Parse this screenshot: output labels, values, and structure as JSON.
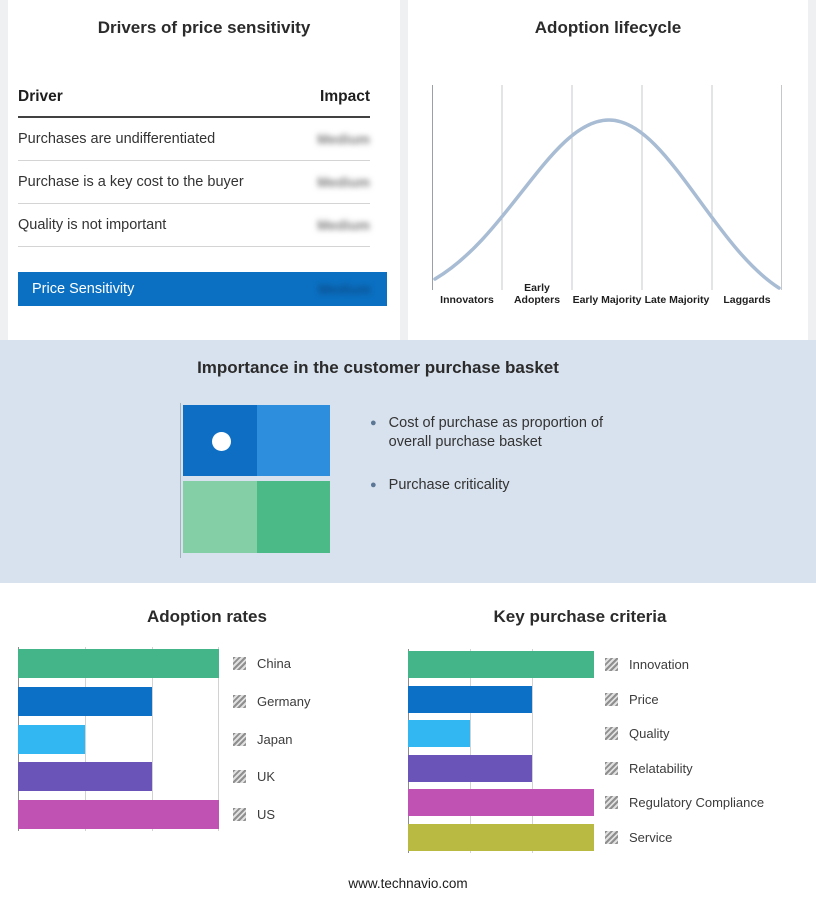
{
  "drivers_panel": {
    "title": "Drivers of price sensitivity",
    "columns": {
      "driver": "Driver",
      "impact": "Impact"
    },
    "rows": [
      {
        "driver": "Purchases are undifferentiated",
        "impact": "Medium",
        "redacted": true
      },
      {
        "driver": "Purchase is a key cost to the buyer",
        "impact": "Medium",
        "redacted": true
      },
      {
        "driver": "Quality is not important",
        "impact": "Medium",
        "redacted": true
      }
    ],
    "highlight": {
      "driver": "Price Sensitivity",
      "impact": "Medium",
      "redacted": true,
      "color": "#0b70c2"
    }
  },
  "basket": {
    "title": "Importance in the customer purchase basket",
    "bullets": [
      "Cost of purchase as proportion of overall purchase basket",
      "Purchase criticality"
    ],
    "quadrant_colors": {
      "top_left": "#0d6ec4",
      "top_right": "#2e8ede",
      "bottom_left": "#84cfa6",
      "bottom_right": "#4bba86"
    }
  },
  "footer": {
    "url": "www.technavio.com"
  },
  "chart_data": [
    {
      "type": "line",
      "title": "Adoption lifecycle",
      "categories": [
        "Innovators",
        "Early Adopters",
        "Early Majority",
        "Late Majority",
        "Laggards"
      ],
      "values": [
        0.05,
        0.55,
        1.0,
        0.55,
        0.05
      ],
      "description": "Bell-shaped adoption curve peaking at Early Majority",
      "color": "#a8bcd4",
      "grid": "vertical section dividers",
      "xlabel": "",
      "ylabel": ""
    },
    {
      "type": "bar",
      "title": "Adoption rates",
      "orientation": "horizontal",
      "categories": [
        "China",
        "Germany",
        "Japan",
        "UK",
        "US"
      ],
      "values": [
        3,
        2,
        1,
        2,
        3
      ],
      "max": 3,
      "xlim": [
        0,
        3
      ],
      "colors": [
        "#43b589",
        "#0c70c6",
        "#33b7f2",
        "#6b54b7",
        "#c052b4"
      ],
      "legend_position": "right",
      "grid": "vertical"
    },
    {
      "type": "bar",
      "title": "Key purchase criteria",
      "orientation": "horizontal",
      "categories": [
        "Innovation",
        "Price",
        "Quality",
        "Relatability",
        "Regulatory Compliance",
        "Service"
      ],
      "values": [
        3,
        2,
        1,
        2,
        3,
        3
      ],
      "max": 3,
      "xlim": [
        0,
        3
      ],
      "colors": [
        "#43b589",
        "#0c70c6",
        "#33b7f2",
        "#6b54b7",
        "#c052b4",
        "#b9ba41"
      ],
      "legend_position": "right",
      "grid": "vertical"
    }
  ]
}
